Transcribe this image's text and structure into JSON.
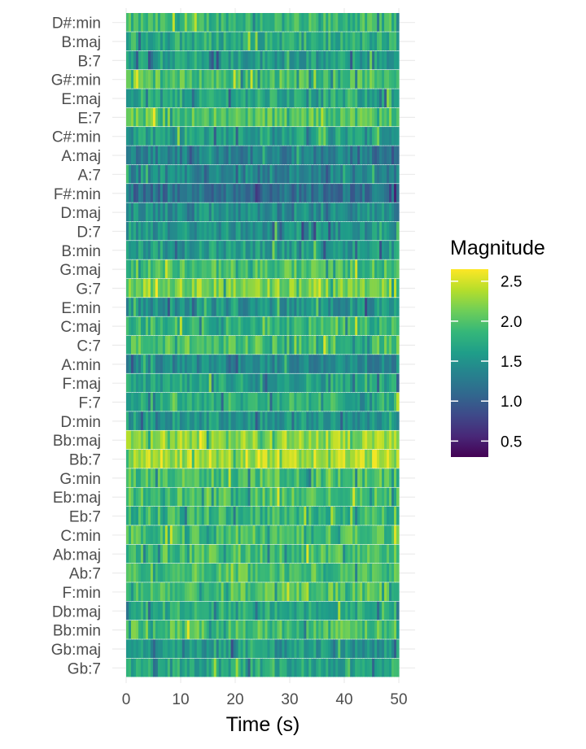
{
  "chart_data": {
    "type": "heatmap",
    "xlabel": "Time (s)",
    "ylabel": "",
    "xlim": [
      0,
      50
    ],
    "x_ticks": [
      "0",
      "10",
      "20",
      "30",
      "40",
      "50"
    ],
    "rows": [
      "D#:min",
      "B:maj",
      "B:7",
      "G#:min",
      "E:maj",
      "E:7",
      "C#:min",
      "A:maj",
      "A:7",
      "F#:min",
      "D:maj",
      "D:7",
      "B:min",
      "G:maj",
      "G:7",
      "E:min",
      "C:maj",
      "C:7",
      "A:min",
      "F:maj",
      "F:7",
      "D:min",
      "Bb:maj",
      "Bb:7",
      "G:min",
      "Eb:maj",
      "Eb:7",
      "C:min",
      "Ab:maj",
      "Ab:7",
      "F:min",
      "Db:maj",
      "Bb:min",
      "Gb:maj",
      "Gb:7"
    ],
    "row_mean_magnitude": [
      1.85,
      1.75,
      1.6,
      1.95,
      1.7,
      2.0,
      1.65,
      1.3,
      1.35,
      1.2,
      1.45,
      1.5,
      1.6,
      1.95,
      2.2,
      1.5,
      1.85,
      1.95,
      1.4,
      1.65,
      1.8,
      1.55,
      2.25,
      2.35,
      1.95,
      1.95,
      1.85,
      1.95,
      1.95,
      1.95,
      2.0,
      1.75,
      1.95,
      1.55,
      1.7
    ],
    "legend": {
      "title": "Magnitude",
      "ticks": [
        "0.5",
        "1.0",
        "1.5",
        "2.0",
        "2.5"
      ],
      "tick_values": [
        0.5,
        1.0,
        1.5,
        2.0,
        2.5
      ],
      "range": [
        0.3,
        2.65
      ],
      "colormap": "viridis",
      "placement": "right"
    },
    "grid": true,
    "colors": {
      "viridis_low": "#440154",
      "viridis_mid": "#21918c",
      "viridis_high": "#fde725",
      "gridline": "#ebebeb",
      "tick_text": "#4d4d4d"
    }
  }
}
